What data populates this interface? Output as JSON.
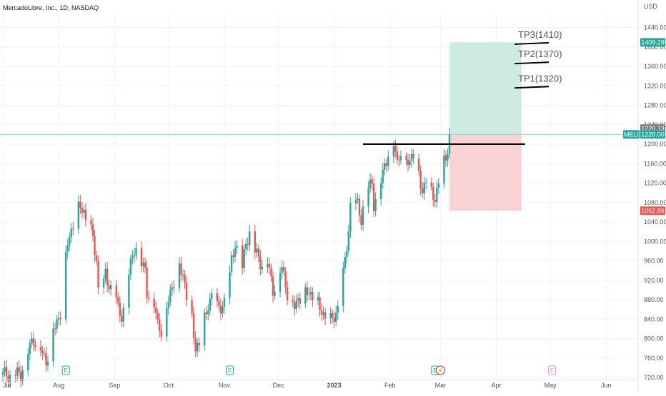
{
  "header": {
    "title": "MercadoLibre, Inc., 1D, NASDAQ",
    "currency": "USD"
  },
  "colors": {
    "up": "#26a69a",
    "down": "#ef5350",
    "target_zone": "#cdeae3",
    "stop_zone": "#f9d3d3",
    "grid": "#f0f3fa",
    "axis_text": "#555555"
  },
  "chart_data": {
    "type": "candlestick",
    "symbol": "MELI",
    "interval": "1D",
    "exchange": "NASDAQ",
    "ylim": [
      710,
      1460
    ],
    "yticks": [
      720,
      760,
      800,
      840,
      880,
      920,
      960,
      1000,
      1040,
      1080,
      1120,
      1160,
      1200,
      1240,
      1280,
      1320,
      1360,
      1400,
      1440
    ],
    "x_range_days": [
      0,
      356
    ],
    "x_labels": [
      {
        "label": "Jul",
        "day": 0
      },
      {
        "label": "Aug",
        "day": 31
      },
      {
        "label": "Sep",
        "day": 62
      },
      {
        "label": "Oct",
        "day": 92
      },
      {
        "label": "Nov",
        "day": 123
      },
      {
        "label": "Dec",
        "day": 153
      },
      {
        "label": "2023",
        "day": 184
      },
      {
        "label": "Feb",
        "day": 215
      },
      {
        "label": "Mar",
        "day": 243
      },
      {
        "label": "Apr",
        "day": 274
      },
      {
        "label": "May",
        "day": 304
      },
      {
        "label": "Jun",
        "day": 335
      }
    ],
    "closes": [
      [
        0,
        725
      ],
      [
        3,
        728
      ],
      [
        5,
        722
      ],
      [
        10,
        730
      ],
      [
        13,
        765
      ],
      [
        17,
        800
      ],
      [
        20,
        790
      ],
      [
        22,
        770
      ],
      [
        24,
        750
      ],
      [
        26,
        790
      ],
      [
        28,
        820
      ],
      [
        31,
        840
      ],
      [
        32,
        855
      ],
      [
        34,
        890
      ],
      [
        35,
        970
      ],
      [
        36,
        1000
      ],
      [
        38,
        1020
      ],
      [
        40,
        1050
      ],
      [
        43,
        1075
      ],
      [
        45,
        1060
      ],
      [
        47,
        1030
      ],
      [
        50,
        1010
      ],
      [
        52,
        960
      ],
      [
        53,
        900
      ],
      [
        55,
        880
      ],
      [
        57,
        935
      ],
      [
        59,
        910
      ],
      [
        62,
        890
      ],
      [
        64,
        860
      ],
      [
        66,
        850
      ],
      [
        68,
        870
      ],
      [
        70,
        930
      ],
      [
        73,
        990
      ],
      [
        74,
        990
      ],
      [
        76,
        960
      ],
      [
        79,
        940
      ],
      [
        80,
        900
      ],
      [
        84,
        870
      ],
      [
        86,
        830
      ],
      [
        88,
        820
      ],
      [
        90,
        850
      ],
      [
        92,
        880
      ],
      [
        95,
        920
      ],
      [
        97,
        960
      ],
      [
        100,
        930
      ],
      [
        103,
        870
      ],
      [
        105,
        840
      ],
      [
        107,
        780
      ],
      [
        109,
        790
      ],
      [
        111,
        820
      ],
      [
        114,
        870
      ],
      [
        117,
        900
      ],
      [
        119,
        860
      ],
      [
        122,
        870
      ],
      [
        125,
        890
      ],
      [
        127,
        960
      ],
      [
        129,
        1000
      ],
      [
        131,
        970
      ],
      [
        133,
        940
      ],
      [
        135,
        1000
      ],
      [
        137,
        1020
      ],
      [
        140,
        980
      ],
      [
        143,
        960
      ],
      [
        145,
        950
      ],
      [
        147,
        960
      ],
      [
        150,
        900
      ],
      [
        152,
        920
      ],
      [
        155,
        950
      ],
      [
        157,
        910
      ],
      [
        159,
        880
      ],
      [
        162,
        870
      ],
      [
        164,
        880
      ],
      [
        166,
        890
      ],
      [
        169,
        900
      ],
      [
        171,
        890
      ],
      [
        173,
        880
      ],
      [
        175,
        870
      ],
      [
        177,
        860
      ],
      [
        179,
        840
      ],
      [
        182,
        835
      ],
      [
        184,
        850
      ],
      [
        186,
        860
      ],
      [
        188,
        900
      ],
      [
        190,
        960
      ],
      [
        192,
        1030
      ],
      [
        193,
        1070
      ],
      [
        195,
        1080
      ],
      [
        197,
        1075
      ],
      [
        199,
        1050
      ],
      [
        201,
        1085
      ],
      [
        203,
        1110
      ],
      [
        205,
        1120
      ],
      [
        206,
        1080
      ],
      [
        208,
        1100
      ],
      [
        209,
        1110
      ],
      [
        211,
        1140
      ],
      [
        213,
        1170
      ],
      [
        215,
        1200
      ],
      [
        216,
        1220
      ],
      [
        218,
        1185
      ],
      [
        219,
        1160
      ],
      [
        221,
        1190
      ],
      [
        222,
        1230
      ],
      [
        224,
        1170
      ],
      [
        226,
        1160
      ],
      [
        227,
        1180
      ],
      [
        229,
        1190
      ],
      [
        231,
        1140
      ],
      [
        233,
        1100
      ],
      [
        235,
        1130
      ],
      [
        236,
        1150
      ],
      [
        238,
        1100
      ],
      [
        240,
        1090
      ],
      [
        242,
        1120
      ],
      [
        244,
        1150
      ],
      [
        246,
        1170
      ],
      [
        248,
        1220
      ]
    ],
    "position": {
      "entry": 1220,
      "target": 1409.29,
      "stop": 1062.86,
      "start_day": 248,
      "end_day": 288
    },
    "resistance_line": {
      "price": 1200,
      "start_day": 200,
      "end_day": 290
    },
    "take_profit_levels": [
      {
        "label": "TP3(1410)",
        "price": 1410
      },
      {
        "label": "TP2(1370)",
        "price": 1370
      },
      {
        "label": "TP1(1320)",
        "price": 1320
      }
    ],
    "price_labels": [
      {
        "text": "1409.29",
        "kind": "target"
      },
      {
        "text": "1220.13",
        "kind": "neutral"
      },
      {
        "text": "1220.00",
        "kind": "last",
        "symbol": "MELI"
      },
      {
        "text": "1062.86",
        "kind": "stop"
      }
    ],
    "events": [
      {
        "label": "E",
        "day": 35,
        "kind": "earnings"
      },
      {
        "label": "E",
        "day": 126,
        "kind": "earnings"
      },
      {
        "label": "E",
        "day": 240,
        "kind": "earnings"
      },
      {
        "label": "⚡",
        "day": 243,
        "kind": "split"
      },
      {
        "label": "E",
        "day": 305,
        "kind": "earnings-upcoming"
      }
    ]
  }
}
